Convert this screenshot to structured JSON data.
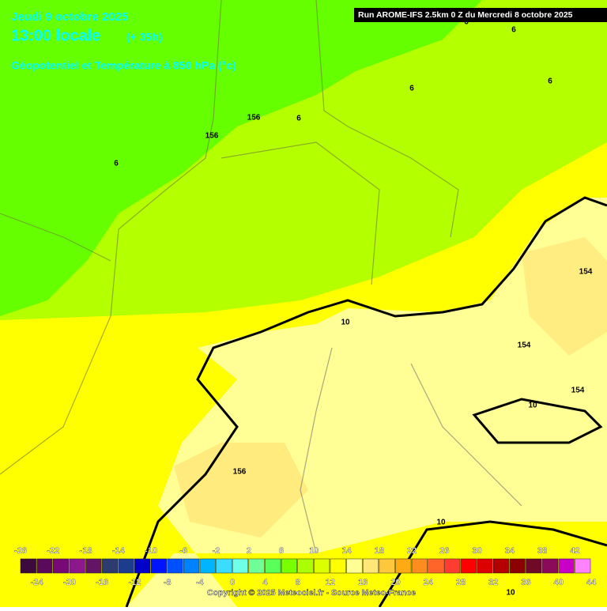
{
  "header": {
    "date": "Jeudi 9 octobre 2025",
    "time": "13:00 locale",
    "lead": "(+ 35h)",
    "field": "Géopotentiel et Température à 850 hPa (°c)",
    "run": "Run AROME-IFS 2.5km 0 Z du Mercredi 8 octobre 2025"
  },
  "map": {
    "contour_labels": [
      6,
      6,
      6,
      6,
      6,
      6,
      156,
      156,
      156,
      154,
      154,
      154,
      10,
      10,
      10,
      10
    ]
  },
  "colorbar": {
    "boundaries": [
      -26,
      -24,
      -22,
      -20,
      -18,
      -16,
      -14,
      -12,
      -10,
      -8,
      -6,
      -4,
      -2,
      0,
      2,
      4,
      6,
      8,
      10,
      12,
      14,
      16,
      18,
      20,
      22,
      24,
      26,
      28,
      30,
      32,
      34,
      36,
      38,
      40,
      42,
      44
    ],
    "colors": [
      "#3c0a3c",
      "#5a0a5a",
      "#780a78",
      "#8c198c",
      "#641464",
      "#2d3c6e",
      "#1e3c8c",
      "#0000c8",
      "#0014ff",
      "#0050ff",
      "#0082ff",
      "#00b4ff",
      "#3cdcff",
      "#6effe6",
      "#6eff96",
      "#5aff5a",
      "#78ff00",
      "#aaff00",
      "#dcff00",
      "#ffff00",
      "#ffff96",
      "#ffe678",
      "#ffc83c",
      "#ffaa14",
      "#ff8c1e",
      "#ff6428",
      "#ff3c32",
      "#ff0000",
      "#dc0000",
      "#b40000",
      "#8c0000",
      "#6e0a28",
      "#8c0a5a",
      "#c800c8",
      "#ff82ff"
    ]
  },
  "footer": {
    "copyright": "Copyright © 2025 Meteociel.fr - Source Meteo-France"
  }
}
